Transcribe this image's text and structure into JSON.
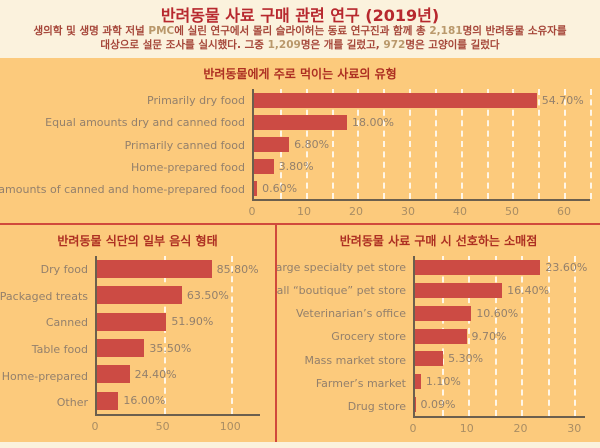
{
  "header": {
    "title": "반려동물 사료 구매 관련 연구 (2019년)",
    "subtitle1": {
      "s1": "생의학 및 생명 과학 저널 ",
      "s2": "PMC",
      "s3": "에 실린 연구에서 몰리 슬라이허는 동료 연구진과 함께 총 ",
      "s4": "2,181",
      "s5": "명의 반려동물 소유자를"
    },
    "subtitle2": {
      "s1": "대상으로 설문 조사를 실시했다. 그중 ",
      "s2": "1,209",
      "s3": "명은 개를 길렀고, ",
      "s4": "972",
      "s5": "명은 고양이를 길렀다"
    }
  },
  "colors": {
    "page_background": "#fbf2dd",
    "panel_background": "#fcca7c",
    "bar": "#cc4b44",
    "divider": "#d0493c",
    "main_title": "#b7282e",
    "chart_title": "#ad2f22",
    "label_text": "#93806c",
    "tick_text": "#a98d64",
    "axis_line": "#6b5f4e",
    "gridline": "#ffffff"
  },
  "chart_data": [
    {
      "id": "food-type",
      "type": "bar",
      "orientation": "horizontal",
      "title": "반려동물에게 주로 먹이는 사료의 유형",
      "categories": [
        "Primarily dry food",
        "Equal amounts dry and canned food",
        "Primarily canned food",
        "Home-prepared food",
        "Equal amounts of canned and home-prepared food"
      ],
      "values": [
        54.7,
        18.0,
        6.8,
        3.8,
        0.6
      ],
      "value_labels": [
        "54.70%",
        "18.00%",
        "6.80%",
        "3.80%",
        "0.60%"
      ],
      "xlim": [
        0,
        65
      ],
      "ticks": [
        0,
        10,
        20,
        30,
        40,
        50,
        60
      ],
      "grid_step": 5,
      "grid": "dashed-white-vertical",
      "legend": "none"
    },
    {
      "id": "diet-form",
      "type": "bar",
      "orientation": "horizontal",
      "title": "반려동물 식단의 일부 음식 형태",
      "categories": [
        "Dry food",
        "Packaged treats",
        "Canned",
        "Table food",
        "Home-prepared",
        "Other"
      ],
      "values": [
        85.8,
        63.5,
        51.9,
        35.5,
        24.4,
        16.0
      ],
      "value_labels": [
        "85.80%",
        "63.50%",
        "51.90%",
        "35.50%",
        "24.40%",
        "16.00%"
      ],
      "xlim": [
        0,
        122
      ],
      "ticks": [
        0,
        50,
        100
      ],
      "grid_step": 50,
      "grid": "dashed-white-vertical",
      "legend": "none"
    },
    {
      "id": "retailer",
      "type": "bar",
      "orientation": "horizontal",
      "title": "반려동물 사료 구매 시 선호하는 소매점",
      "categories": [
        "Large specialty pet store",
        "Small “boutique” pet store",
        "Veterinarian’s office",
        "Grocery store",
        "Mass market store",
        "Farmer’s market",
        "Drug store"
      ],
      "values": [
        23.6,
        16.4,
        10.6,
        9.7,
        5.3,
        1.1,
        0.09
      ],
      "value_labels": [
        "23.60%",
        "16.40%",
        "10.60%",
        "9.70%",
        "5.30%",
        "1.10%",
        "0.09%"
      ],
      "xlim": [
        0,
        32
      ],
      "ticks": [
        0,
        10,
        20,
        30
      ],
      "grid_step": 5,
      "grid": "dashed-white-vertical",
      "legend": "none"
    }
  ]
}
